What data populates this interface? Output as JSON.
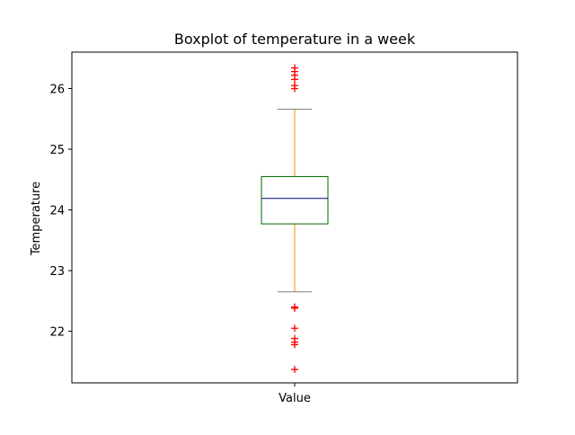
{
  "chart_data": {
    "type": "box",
    "title": "Boxplot of temperature in a week",
    "xlabel": "",
    "ylabel": "Temperature",
    "categories": [
      "Value"
    ],
    "ylim": [
      21.15,
      26.6
    ],
    "yticks": [
      22,
      23,
      24,
      25,
      26
    ],
    "grid": false,
    "box": {
      "whisker_low": 22.65,
      "q1": 23.77,
      "median": 24.19,
      "q3": 24.55,
      "whisker_high": 25.66
    },
    "outliers": [
      26.34,
      26.28,
      26.22,
      26.15,
      26.05,
      26.0,
      22.4,
      22.38,
      22.05,
      21.88,
      21.82,
      21.78,
      21.37
    ],
    "colors": {
      "box": "#006400",
      "median": "#00008b",
      "whisker": "#ff8c00",
      "cap": "#808080",
      "flier": "#ff0000"
    }
  }
}
